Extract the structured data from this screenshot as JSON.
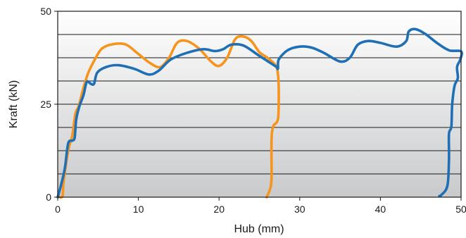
{
  "chart_data": {
    "type": "line",
    "xlabel": "Hub (mm)",
    "ylabel": "Kraft (kN)",
    "xlim": [
      0,
      50
    ],
    "ylim": [
      0,
      50
    ],
    "x_ticks": [
      "0",
      "10",
      "20",
      "30",
      "40",
      "50"
    ],
    "y_ticks": [
      "0",
      "25",
      "50"
    ],
    "grid": "horizontal",
    "background": "vertical-gradient-gray",
    "series": [
      {
        "color": "#f7941d",
        "points": [
          [
            0.2,
            0.0
          ],
          [
            0.6,
            0.3
          ],
          [
            0.7,
            3.5
          ],
          [
            1.0,
            8.5
          ],
          [
            1.4,
            13.5
          ],
          [
            1.8,
            16.5
          ],
          [
            2.2,
            22.5
          ],
          [
            2.6,
            24.5
          ],
          [
            3.2,
            29.5
          ],
          [
            3.8,
            33.5
          ],
          [
            4.6,
            37.0
          ],
          [
            5.5,
            40.0
          ],
          [
            7.0,
            41.2
          ],
          [
            8.5,
            41.0
          ],
          [
            10.0,
            38.5
          ],
          [
            11.5,
            36.0
          ],
          [
            12.7,
            35.0
          ],
          [
            13.8,
            37.5
          ],
          [
            14.8,
            41.5
          ],
          [
            16.0,
            42.0
          ],
          [
            17.5,
            40.0
          ],
          [
            19.0,
            36.5
          ],
          [
            20.0,
            35.3
          ],
          [
            21.0,
            37.5
          ],
          [
            22.0,
            42.5
          ],
          [
            23.0,
            43.2
          ],
          [
            24.0,
            42.0
          ],
          [
            25.0,
            39.0
          ],
          [
            26.0,
            37.5
          ],
          [
            27.0,
            35.5
          ],
          [
            27.3,
            33.0
          ],
          [
            27.4,
            28.0
          ],
          [
            27.3,
            21.0
          ],
          [
            26.7,
            19.0
          ],
          [
            26.5,
            15.0
          ],
          [
            26.5,
            5.0
          ],
          [
            26.3,
            2.0
          ],
          [
            25.9,
            0.0
          ]
        ]
      },
      {
        "color": "#1f6fb5",
        "points": [
          [
            0.0,
            0.0
          ],
          [
            0.5,
            4.0
          ],
          [
            0.9,
            8.0
          ],
          [
            1.3,
            14.5
          ],
          [
            1.8,
            15.2
          ],
          [
            2.1,
            16.0
          ],
          [
            2.3,
            21.0
          ],
          [
            2.7,
            24.5
          ],
          [
            3.2,
            27.5
          ],
          [
            3.6,
            31.0
          ],
          [
            4.1,
            30.5
          ],
          [
            4.5,
            30.5
          ],
          [
            4.9,
            33.5
          ],
          [
            6.0,
            35.0
          ],
          [
            7.5,
            35.5
          ],
          [
            9.5,
            34.5
          ],
          [
            11.3,
            33.0
          ],
          [
            12.5,
            34.0
          ],
          [
            14.0,
            37.0
          ],
          [
            16.0,
            38.8
          ],
          [
            18.0,
            39.8
          ],
          [
            19.5,
            39.3
          ],
          [
            20.5,
            39.8
          ],
          [
            21.5,
            41.0
          ],
          [
            23.0,
            40.8
          ],
          [
            25.0,
            38.0
          ],
          [
            27.0,
            35.2
          ],
          [
            27.3,
            34.6
          ],
          [
            27.4,
            37.0
          ],
          [
            28.5,
            39.5
          ],
          [
            30.0,
            40.5
          ],
          [
            31.5,
            40.2
          ],
          [
            33.0,
            38.8
          ],
          [
            35.0,
            36.5
          ],
          [
            36.2,
            37.5
          ],
          [
            37.2,
            41.0
          ],
          [
            38.5,
            42.0
          ],
          [
            40.0,
            41.5
          ],
          [
            42.0,
            40.5
          ],
          [
            43.2,
            42.0
          ],
          [
            43.5,
            44.5
          ],
          [
            44.3,
            45.2
          ],
          [
            45.5,
            44.0
          ],
          [
            47.0,
            41.5
          ],
          [
            48.5,
            39.5
          ],
          [
            50.0,
            39.2
          ],
          [
            49.9,
            37.0
          ],
          [
            49.5,
            35.0
          ],
          [
            49.6,
            32.0
          ],
          [
            49.2,
            30.0
          ],
          [
            48.9,
            25.0
          ],
          [
            48.8,
            19.0
          ],
          [
            48.5,
            17.0
          ],
          [
            48.5,
            10.0
          ],
          [
            48.3,
            3.0
          ],
          [
            47.5,
            0.5
          ],
          [
            47.3,
            0.3
          ]
        ]
      }
    ]
  }
}
